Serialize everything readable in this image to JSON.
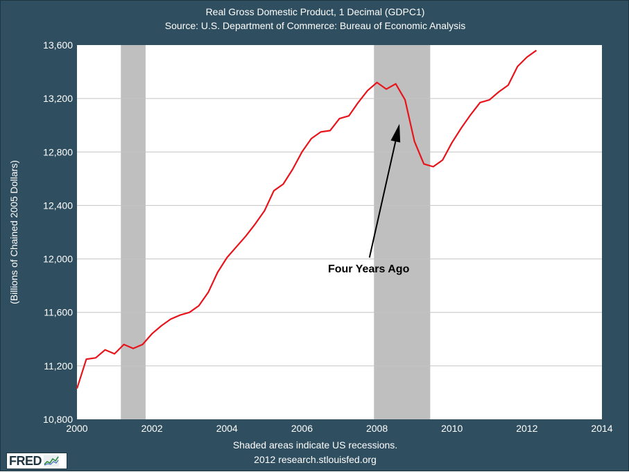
{
  "chart_data": {
    "type": "line",
    "title": "Real Gross Domestic Product, 1 Decimal (GDPC1)",
    "subtitle": "Source: U.S. Department of Commerce: Bureau of Economic Analysis",
    "ylabel": "(Billions of Chained 2005 Dollars)",
    "xlabel": "",
    "xlim": [
      2000,
      2014
    ],
    "ylim": [
      10800,
      13600
    ],
    "x_ticks": [
      2000,
      2002,
      2004,
      2006,
      2008,
      2010,
      2012,
      2014
    ],
    "x_tick_labels": [
      "2000",
      "2002",
      "2004",
      "2006",
      "2008",
      "2010",
      "2012",
      "2014"
    ],
    "y_ticks": [
      10800,
      11200,
      11600,
      12000,
      12400,
      12800,
      13200,
      13600
    ],
    "y_tick_labels": [
      "10,800",
      "11,200",
      "11,600",
      "12,000",
      "12,400",
      "12,800",
      "13,200",
      "13,600"
    ],
    "grid": true,
    "recessions": [
      {
        "start": 2001.17,
        "end": 2001.83
      },
      {
        "start": 2007.92,
        "end": 2009.42
      }
    ],
    "annotation": {
      "text": "Four Years Ago",
      "arrow_to": {
        "x": 2008.6,
        "y": 13010
      },
      "arrow_from": {
        "x": 2007.8,
        "y": 12010
      },
      "text_anchor": {
        "x": 2007.78,
        "y": 11900
      }
    },
    "series": [
      {
        "color": "#e8141b",
        "x": [
          2000.0,
          2000.25,
          2000.5,
          2000.75,
          2001.0,
          2001.25,
          2001.5,
          2001.75,
          2002.0,
          2002.25,
          2002.5,
          2002.75,
          2003.0,
          2003.25,
          2003.5,
          2003.75,
          2004.0,
          2004.25,
          2004.5,
          2004.75,
          2005.0,
          2005.25,
          2005.5,
          2005.75,
          2006.0,
          2006.25,
          2006.5,
          2006.75,
          2007.0,
          2007.25,
          2007.5,
          2007.75,
          2008.0,
          2008.25,
          2008.5,
          2008.75,
          2009.0,
          2009.25,
          2009.5,
          2009.75,
          2010.0,
          2010.25,
          2010.5,
          2010.75,
          2011.0,
          2011.25,
          2011.5,
          2011.75,
          2012.0,
          2012.25
        ],
        "values": [
          11030,
          11250,
          11260,
          11320,
          11290,
          11360,
          11330,
          11360,
          11440,
          11500,
          11550,
          11580,
          11600,
          11650,
          11750,
          11900,
          12010,
          12090,
          12170,
          12260,
          12360,
          12510,
          12560,
          12670,
          12800,
          12900,
          12950,
          12960,
          13050,
          13070,
          13170,
          13260,
          13320,
          13270,
          13310,
          13190,
          12880,
          12710,
          12690,
          12740,
          12870,
          12980,
          13080,
          13170,
          13190,
          13250,
          13300,
          13440,
          13510,
          13560
        ]
      }
    ]
  },
  "footer": {
    "recession_note": "Shaded areas indicate US recessions.",
    "source_url": "2012 research.stlouisfed.org"
  },
  "logo": {
    "text": "FRED",
    "icon": "fred-sparkline-icon"
  },
  "colors": {
    "frame": "#2f4e5f",
    "plot_bg": "#ffffff",
    "grid": "#c4c4c4",
    "recession": "#bfbfbf",
    "line": "#e8141b",
    "annotation": "#000000"
  }
}
